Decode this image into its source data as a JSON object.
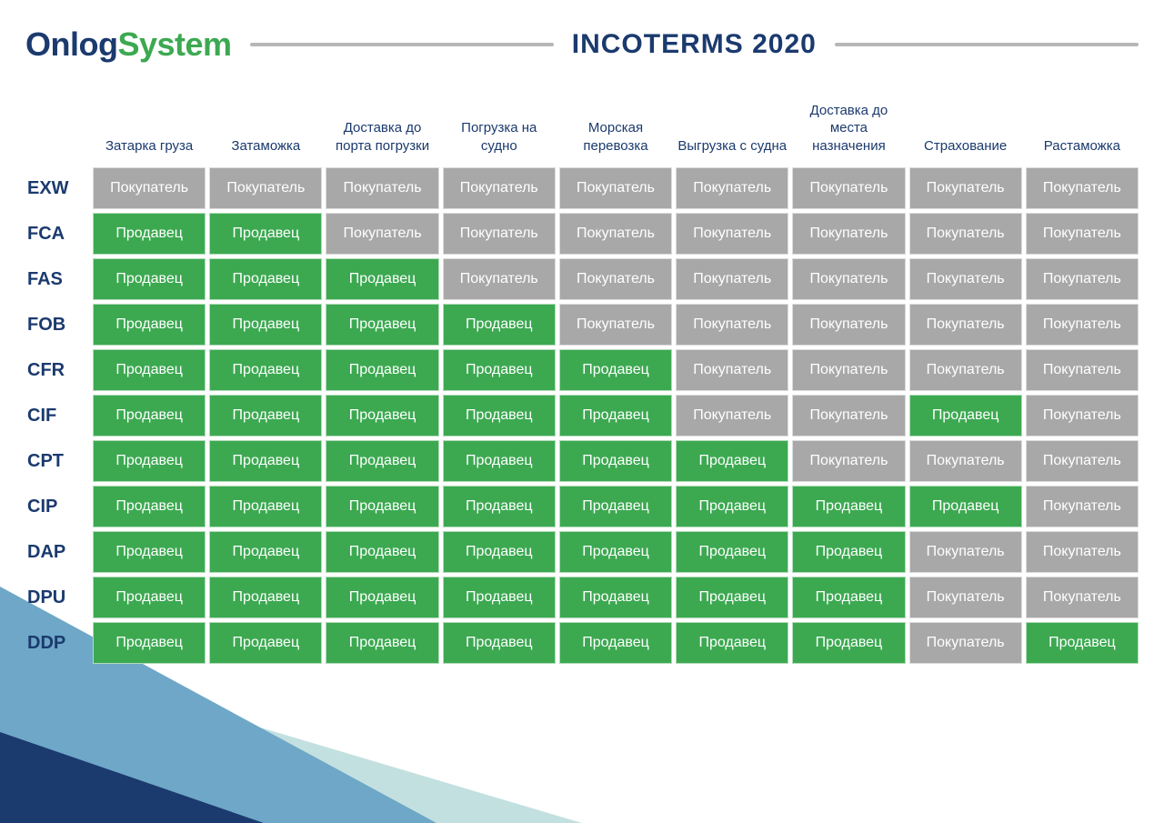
{
  "brand": {
    "part1": "Onlog",
    "part2": "System"
  },
  "title": "INCOTERMS 2020",
  "colors": {
    "seller_bg": "#3ca951",
    "buyer_bg": "#a8a8a8",
    "navy": "#1b3a6e",
    "tri1": "#6ea7c7",
    "tri2": "#c3e0e0",
    "tri3": "#1b3a6e"
  },
  "labels": {
    "seller": "Продавец",
    "buyer": "Покупатель"
  },
  "columns": [
    "Затарка груза",
    "Затаможка",
    "Доставка до порта погрузки",
    "Погрузка на судно",
    "Морская перевозка",
    "Выгрузка с судна",
    "Доставка до места назначения",
    "Страхование",
    "Растаможка"
  ],
  "rows": [
    {
      "code": "EXW",
      "cells": [
        "b",
        "b",
        "b",
        "b",
        "b",
        "b",
        "b",
        "b",
        "b"
      ]
    },
    {
      "code": "FCA",
      "cells": [
        "s",
        "s",
        "b",
        "b",
        "b",
        "b",
        "b",
        "b",
        "b"
      ]
    },
    {
      "code": "FAS",
      "cells": [
        "s",
        "s",
        "s",
        "b",
        "b",
        "b",
        "b",
        "b",
        "b"
      ]
    },
    {
      "code": "FOB",
      "cells": [
        "s",
        "s",
        "s",
        "s",
        "b",
        "b",
        "b",
        "b",
        "b"
      ]
    },
    {
      "code": "CFR",
      "cells": [
        "s",
        "s",
        "s",
        "s",
        "s",
        "b",
        "b",
        "b",
        "b"
      ]
    },
    {
      "code": "CIF",
      "cells": [
        "s",
        "s",
        "s",
        "s",
        "s",
        "b",
        "b",
        "s",
        "b"
      ]
    },
    {
      "code": "CPT",
      "cells": [
        "s",
        "s",
        "s",
        "s",
        "s",
        "s",
        "b",
        "b",
        "b"
      ]
    },
    {
      "code": "CIP",
      "cells": [
        "s",
        "s",
        "s",
        "s",
        "s",
        "s",
        "s",
        "s",
        "b"
      ]
    },
    {
      "code": "DAP",
      "cells": [
        "s",
        "s",
        "s",
        "s",
        "s",
        "s",
        "s",
        "b",
        "b"
      ]
    },
    {
      "code": "DPU",
      "cells": [
        "s",
        "s",
        "s",
        "s",
        "s",
        "s",
        "s",
        "b",
        "b"
      ]
    },
    {
      "code": "DDP",
      "cells": [
        "s",
        "s",
        "s",
        "s",
        "s",
        "s",
        "s",
        "b",
        "s"
      ]
    }
  ]
}
